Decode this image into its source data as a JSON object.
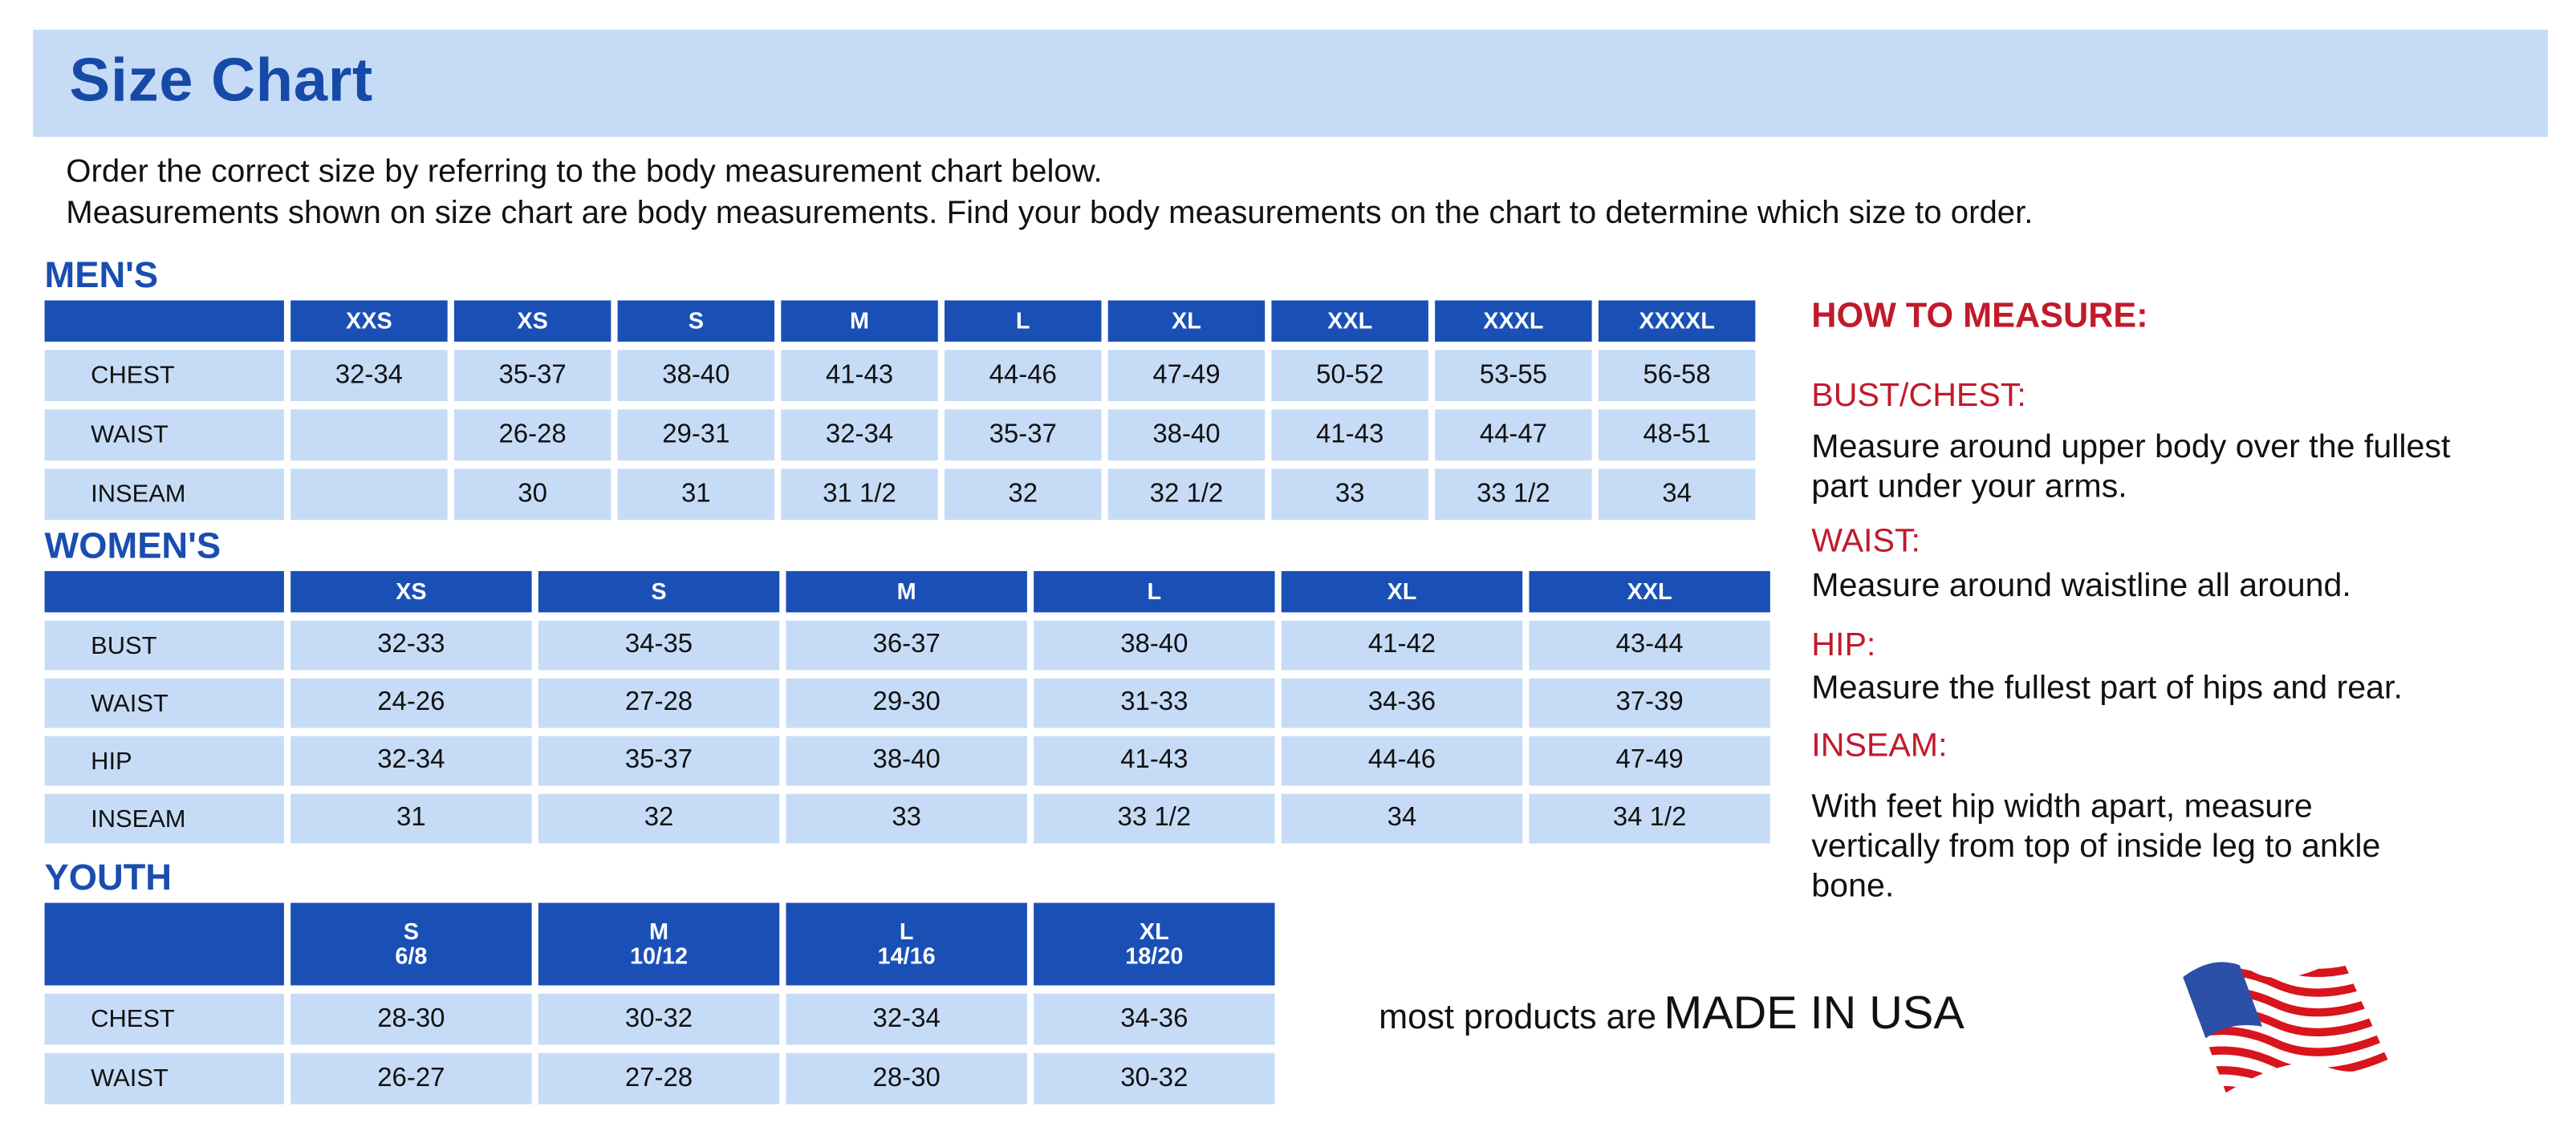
{
  "header": {
    "title": "Size Chart"
  },
  "intro": [
    "Order the correct size by referring to the body measurement chart below.",
    "Measurements shown on size chart are body measurements.  Find your body measurements on the chart to determine which size to order."
  ],
  "mens": {
    "label": "MEN'S",
    "sizes": [
      "XXS",
      "XS",
      "S",
      "M",
      "L",
      "XL",
      "XXL",
      "XXXL",
      "XXXXL"
    ],
    "rows": [
      {
        "name": "CHEST",
        "values": [
          "32-34",
          "35-37",
          "38-40",
          "41-43",
          "44-46",
          "47-49",
          "50-52",
          "53-55",
          "56-58"
        ]
      },
      {
        "name": "WAIST",
        "values": [
          "",
          "26-28",
          "29-31",
          "32-34",
          "35-37",
          "38-40",
          "41-43",
          "44-47",
          "48-51"
        ]
      },
      {
        "name": "INSEAM",
        "values": [
          "",
          "30",
          "31",
          "31 1/2",
          "32",
          "32 1/2",
          "33",
          "33 1/2",
          "34"
        ]
      }
    ]
  },
  "womens": {
    "label": "WOMEN'S",
    "sizes": [
      "XS",
      "S",
      "M",
      "L",
      "XL",
      "XXL"
    ],
    "rows": [
      {
        "name": "BUST",
        "values": [
          "32-33",
          "34-35",
          "36-37",
          "38-40",
          "41-42",
          "43-44"
        ]
      },
      {
        "name": "WAIST",
        "values": [
          "24-26",
          "27-28",
          "29-30",
          "31-33",
          "34-36",
          "37-39"
        ]
      },
      {
        "name": "HIP",
        "values": [
          "32-34",
          "35-37",
          "38-40",
          "41-43",
          "44-46",
          "47-49"
        ]
      },
      {
        "name": "INSEAM",
        "values": [
          "31",
          "32",
          "33",
          "33 1/2",
          "34",
          "34 1/2"
        ]
      }
    ]
  },
  "youth": {
    "label": "YOUTH",
    "sizes": [
      "S\n6/8",
      "M\n10/12",
      "L\n14/16",
      "XL\n18/20"
    ],
    "rows": [
      {
        "name": "CHEST",
        "values": [
          "28-30",
          "30-32",
          "32-34",
          "34-36"
        ]
      },
      {
        "name": "WAIST",
        "values": [
          "26-27",
          "27-28",
          "28-30",
          "30-32"
        ]
      }
    ]
  },
  "how_to_measure": {
    "title": "HOW TO MEASURE:",
    "items": [
      {
        "label": "BUST/CHEST:",
        "text": "Measure around upper body over the fullest part under your arms."
      },
      {
        "label": "WAIST:",
        "text": "Measure around waistline all around."
      },
      {
        "label": "HIP:",
        "text": "Measure the fullest part of hips and rear."
      },
      {
        "label": "INSEAM:",
        "text": "With feet hip width apart, measure vertically from top of inside leg to ankle bone."
      }
    ]
  },
  "footer": {
    "prefix": "most products are",
    "emphasis": "MADE IN USA",
    "flag_icon": "us-flag-icon"
  },
  "colors": {
    "header_blue": "#1a50b6",
    "cell_blue": "#c6dcf6",
    "title_blue": "#1649a8",
    "accent_red": "#c01a2b"
  }
}
